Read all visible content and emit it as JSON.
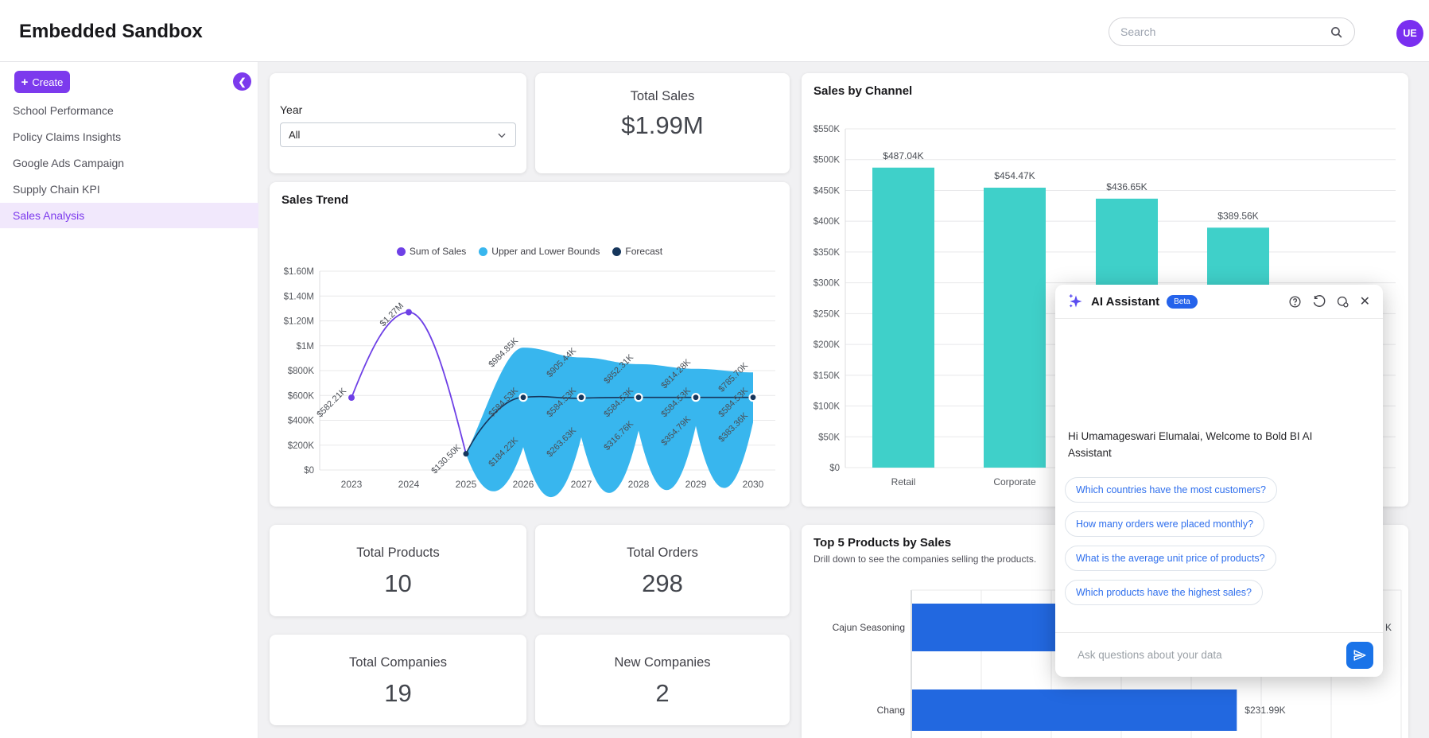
{
  "header": {
    "title": "Embedded Sandbox",
    "search_placeholder": "Search",
    "avatar_initials": "UE"
  },
  "sidebar": {
    "create_label": "Create",
    "items": [
      {
        "label": "School Performance",
        "active": false
      },
      {
        "label": "Policy Claims Insights",
        "active": false
      },
      {
        "label": "Google Ads Campaign",
        "active": false
      },
      {
        "label": "Supply Chain KPI",
        "active": false
      },
      {
        "label": "Sales Analysis",
        "active": true
      }
    ]
  },
  "filters": {
    "year_label": "Year",
    "year_value": "All"
  },
  "kpis": [
    {
      "title": "Total Sales",
      "value": "$1.99M"
    },
    {
      "title": "Total Products",
      "value": "10"
    },
    {
      "title": "Total Orders",
      "value": "298"
    },
    {
      "title": "Total Companies",
      "value": "19"
    },
    {
      "title": "New Companies",
      "value": "2"
    }
  ],
  "colors": {
    "brand": "#7c3aed",
    "teal_bar": "#3fd0c9",
    "band": "#38b6ee",
    "sum_line": "#6e40e6",
    "forecast": "#16365c",
    "blue_bar": "#2268e0",
    "chip_text": "#2f6fed",
    "badge": "#2563eb",
    "send": "#1a73e8",
    "grid": "#e8e8ea",
    "tick": "#55585e",
    "label": "#4a4e55"
  },
  "chart_data": [
    {
      "id": "sales_by_channel",
      "type": "bar",
      "title": "Sales by Channel",
      "categories": [
        "Retail",
        "Corporate",
        "",
        ""
      ],
      "values": [
        487040,
        454470,
        436650,
        389560
      ],
      "value_labels": [
        "$487.04K",
        "$454.47K",
        "$436.65K",
        "$389.56K"
      ],
      "ylabels": [
        "$550K",
        "$500K",
        "$450K",
        "$400K",
        "$350K",
        "$300K",
        "$250K",
        "$200K",
        "$150K",
        "$100K",
        "$50K",
        "$0"
      ],
      "ylim": [
        0,
        550000
      ],
      "grid": true,
      "note": "3rd and 4th category labels hidden behind AI Assistant panel"
    },
    {
      "id": "sales_trend",
      "type": "line+band",
      "title": "Sales Trend",
      "x": [
        2023,
        2024,
        2025,
        2026,
        2027,
        2028,
        2029,
        2030
      ],
      "ylabels": [
        "$1.60M",
        "$1.40M",
        "$1.20M",
        "$1M",
        "$800K",
        "$600K",
        "$400K",
        "$200K",
        "$0"
      ],
      "ylim": [
        0,
        1600000
      ],
      "legend_position": "top",
      "series": [
        {
          "name": "Sum of Sales",
          "type": "line",
          "x": [
            2023,
            2024,
            2025
          ],
          "values": [
            582210,
            1270000,
            130500
          ],
          "labels": [
            "$582.21K",
            "$1.27M",
            "$130.50K"
          ]
        },
        {
          "name": "Upper and Lower Bounds",
          "type": "band",
          "x": [
            2026,
            2027,
            2028,
            2029,
            2030
          ],
          "upper": [
            984850,
            905440,
            852310,
            814280,
            785700
          ],
          "upper_labels": [
            "$984.85K",
            "$905.44K",
            "$852.31K",
            "$814.28K",
            "$785.70K"
          ],
          "lower": [
            184220,
            263630,
            316760,
            354790,
            383360
          ],
          "lower_labels": [
            "$184.22K",
            "$263.63K",
            "$316.76K",
            "$354.79K",
            "$383.36K"
          ]
        },
        {
          "name": "Forecast",
          "type": "line",
          "x": [
            2026,
            2027,
            2028,
            2029,
            2030
          ],
          "values": [
            584530,
            584530,
            584530,
            584530,
            584530
          ],
          "labels": [
            "$584.53K",
            "$584.53K",
            "$584.53K",
            "$584.53K",
            "$584.53K"
          ]
        }
      ]
    },
    {
      "id": "top5_products",
      "type": "hbar",
      "title": "Top 5 Products by Sales",
      "subtitle": "Drill down to see the companies selling the products.",
      "categories": [
        "Cajun Seasoning",
        "Chang"
      ],
      "values": [
        300000,
        231990
      ],
      "value_labels": [
        "",
        "$231.99K"
      ],
      "hidden_label_fragment": "K",
      "gridline_step_value": 50000,
      "note": "list clipped at bottom of viewport; Cajun Seasoning bar end and label hidden behind AI Assistant panel"
    }
  ],
  "ai_assistant": {
    "title": "AI Assistant",
    "badge": "Beta",
    "greeting": "Hi Umamageswari Elumalai, Welcome to Bold BI AI Assistant",
    "suggestions": [
      "Which countries have the most customers?",
      "How many orders were placed monthly?",
      "What is the average unit price of products?",
      "Which products have the highest sales?"
    ],
    "input_placeholder": "Ask questions about your data"
  }
}
